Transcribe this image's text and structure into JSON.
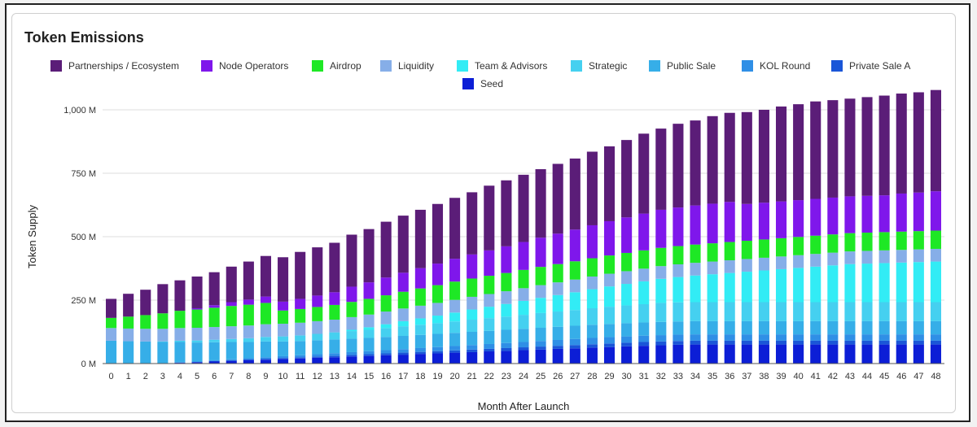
{
  "chart_data": {
    "type": "bar",
    "stacked": true,
    "title": "Token Emissions",
    "xlabel": "Month After Launch",
    "ylabel": "Token Supply",
    "ylim": [
      0,
      1000
    ],
    "y_ticks": [
      0,
      250,
      500,
      750,
      1000
    ],
    "y_tick_labels": [
      "0 M",
      "250 M",
      "500 M",
      "750 M",
      "1,000 M"
    ],
    "grid": true,
    "legend_position": "top",
    "categories": [
      "0",
      "1",
      "2",
      "3",
      "4",
      "5",
      "6",
      "7",
      "8",
      "9",
      "10",
      "11",
      "12",
      "13",
      "14",
      "15",
      "16",
      "17",
      "18",
      "19",
      "20",
      "21",
      "22",
      "23",
      "24",
      "25",
      "26",
      "27",
      "28",
      "29",
      "30",
      "31",
      "32",
      "33",
      "34",
      "35",
      "36",
      "37",
      "38",
      "39",
      "40",
      "41",
      "42",
      "43",
      "44",
      "45",
      "46",
      "47",
      "48"
    ],
    "legend_order": [
      "Partnerships / Ecosystem",
      "Node Operators",
      "Airdrop",
      "Liquidity",
      "Team & Advisors",
      "Strategic",
      "Public Sale",
      "KOL Round",
      "Private Sale A",
      "Seed"
    ],
    "series": [
      {
        "name": "Seed",
        "color": "#0c1ed6",
        "values": [
          0,
          0,
          1,
          1,
          3,
          5,
          8,
          10,
          13,
          15,
          18,
          20,
          23,
          25,
          28,
          30,
          33,
          35,
          38,
          40,
          43,
          45,
          48,
          50,
          53,
          55,
          58,
          60,
          63,
          65,
          68,
          70,
          72,
          74,
          75,
          75,
          75,
          75,
          75,
          75,
          75,
          75,
          75,
          75,
          75,
          75,
          75,
          75,
          75
        ]
      },
      {
        "name": "Private Sale A",
        "color": "#1a56d8",
        "values": [
          0,
          0,
          0,
          0,
          1,
          1,
          2,
          3,
          3,
          4,
          4,
          5,
          5,
          6,
          6,
          7,
          7,
          8,
          8,
          9,
          9,
          10,
          10,
          11,
          11,
          12,
          12,
          13,
          13,
          14,
          14,
          15,
          15,
          15,
          15,
          15,
          15,
          15,
          15,
          15,
          15,
          15,
          15,
          15,
          15,
          15,
          15,
          15,
          15
        ]
      },
      {
        "name": "KOL Round",
        "color": "#2f8fe6",
        "values": [
          0,
          0,
          0,
          0,
          1,
          2,
          3,
          4,
          5,
          6,
          7,
          8,
          9,
          10,
          11,
          12,
          13,
          14,
          15,
          16,
          17,
          18,
          19,
          20,
          21,
          22,
          23,
          24,
          25,
          25,
          25,
          25,
          25,
          25,
          25,
          25,
          25,
          25,
          25,
          25,
          25,
          25,
          25,
          25,
          25,
          25,
          25,
          25,
          25
        ]
      },
      {
        "name": "Public Sale",
        "color": "#36aee8",
        "values": [
          90,
          88,
          86,
          84,
          80,
          75,
          71,
          68,
          64,
          62,
          58,
          56,
          55,
          54,
          53,
          52,
          52,
          52,
          52,
          52,
          52,
          52,
          52,
          52,
          52,
          52,
          52,
          52,
          52,
          52,
          52,
          52,
          52,
          52,
          52,
          52,
          52,
          52,
          52,
          52,
          52,
          52,
          52,
          52,
          52,
          52,
          52,
          52,
          52
        ]
      },
      {
        "name": "Strategic",
        "color": "#45d0f0",
        "values": [
          0,
          0,
          0,
          2,
          5,
          8,
          10,
          12,
          15,
          18,
          20,
          22,
          25,
          28,
          30,
          32,
          35,
          38,
          40,
          42,
          45,
          48,
          50,
          52,
          55,
          58,
          60,
          62,
          65,
          68,
          70,
          72,
          75,
          75,
          75,
          75,
          75,
          75,
          75,
          75,
          75,
          75,
          75,
          75,
          75,
          75,
          75,
          75,
          75
        ]
      },
      {
        "name": "Team & Advisors",
        "color": "#32ecf5",
        "values": [
          0,
          0,
          0,
          0,
          0,
          0,
          0,
          0,
          0,
          0,
          0,
          0,
          0,
          0,
          5,
          10,
          15,
          20,
          25,
          30,
          35,
          40,
          45,
          50,
          55,
          60,
          65,
          70,
          75,
          80,
          85,
          90,
          95,
          100,
          105,
          110,
          115,
          120,
          125,
          130,
          135,
          140,
          145,
          150,
          152,
          154,
          156,
          158,
          160
        ]
      },
      {
        "name": "Liquidity",
        "color": "#86aee8",
        "values": [
          50,
          50,
          50,
          50,
          50,
          50,
          50,
          50,
          50,
          50,
          50,
          50,
          50,
          50,
          50,
          50,
          50,
          50,
          50,
          50,
          50,
          50,
          50,
          50,
          50,
          50,
          50,
          50,
          50,
          50,
          50,
          50,
          50,
          50,
          50,
          50,
          50,
          50,
          50,
          50,
          50,
          50,
          50,
          50,
          50,
          50,
          50,
          50,
          50
        ]
      },
      {
        "name": "Airdrop",
        "color": "#1ee825",
        "values": [
          40,
          47,
          54,
          61,
          68,
          72,
          76,
          80,
          82,
          84,
          52,
          54,
          56,
          58,
          60,
          62,
          64,
          66,
          68,
          70,
          72,
          72,
          72,
          72,
          72,
          72,
          72,
          72,
          72,
          72,
          72,
          72,
          72,
          72,
          72,
          72,
          72,
          72,
          72,
          72,
          72,
          72,
          72,
          72,
          72,
          72,
          72,
          72,
          72
        ]
      },
      {
        "name": "Node Operators",
        "color": "#7f17eb",
        "values": [
          0,
          0,
          0,
          0,
          0,
          5,
          10,
          15,
          20,
          25,
          35,
          40,
          45,
          50,
          60,
          65,
          70,
          75,
          80,
          85,
          90,
          95,
          100,
          105,
          110,
          115,
          120,
          125,
          130,
          135,
          140,
          145,
          150,
          152,
          154,
          156,
          158,
          145,
          145,
          145,
          145,
          145,
          145,
          145,
          145,
          145,
          150,
          152,
          155
        ]
      },
      {
        "name": "Partnerships / Ecosystem",
        "color": "#5b1d78",
        "values": [
          75,
          90,
          100,
          115,
          120,
          125,
          130,
          140,
          150,
          160,
          175,
          185,
          190,
          195,
          205,
          210,
          220,
          225,
          230,
          235,
          240,
          245,
          255,
          260,
          265,
          270,
          275,
          280,
          290,
          295,
          305,
          315,
          320,
          330,
          335,
          345,
          351,
          362,
          366,
          374,
          378,
          384,
          384,
          385,
          389,
          393,
          394,
          395,
          399
        ]
      }
    ]
  }
}
